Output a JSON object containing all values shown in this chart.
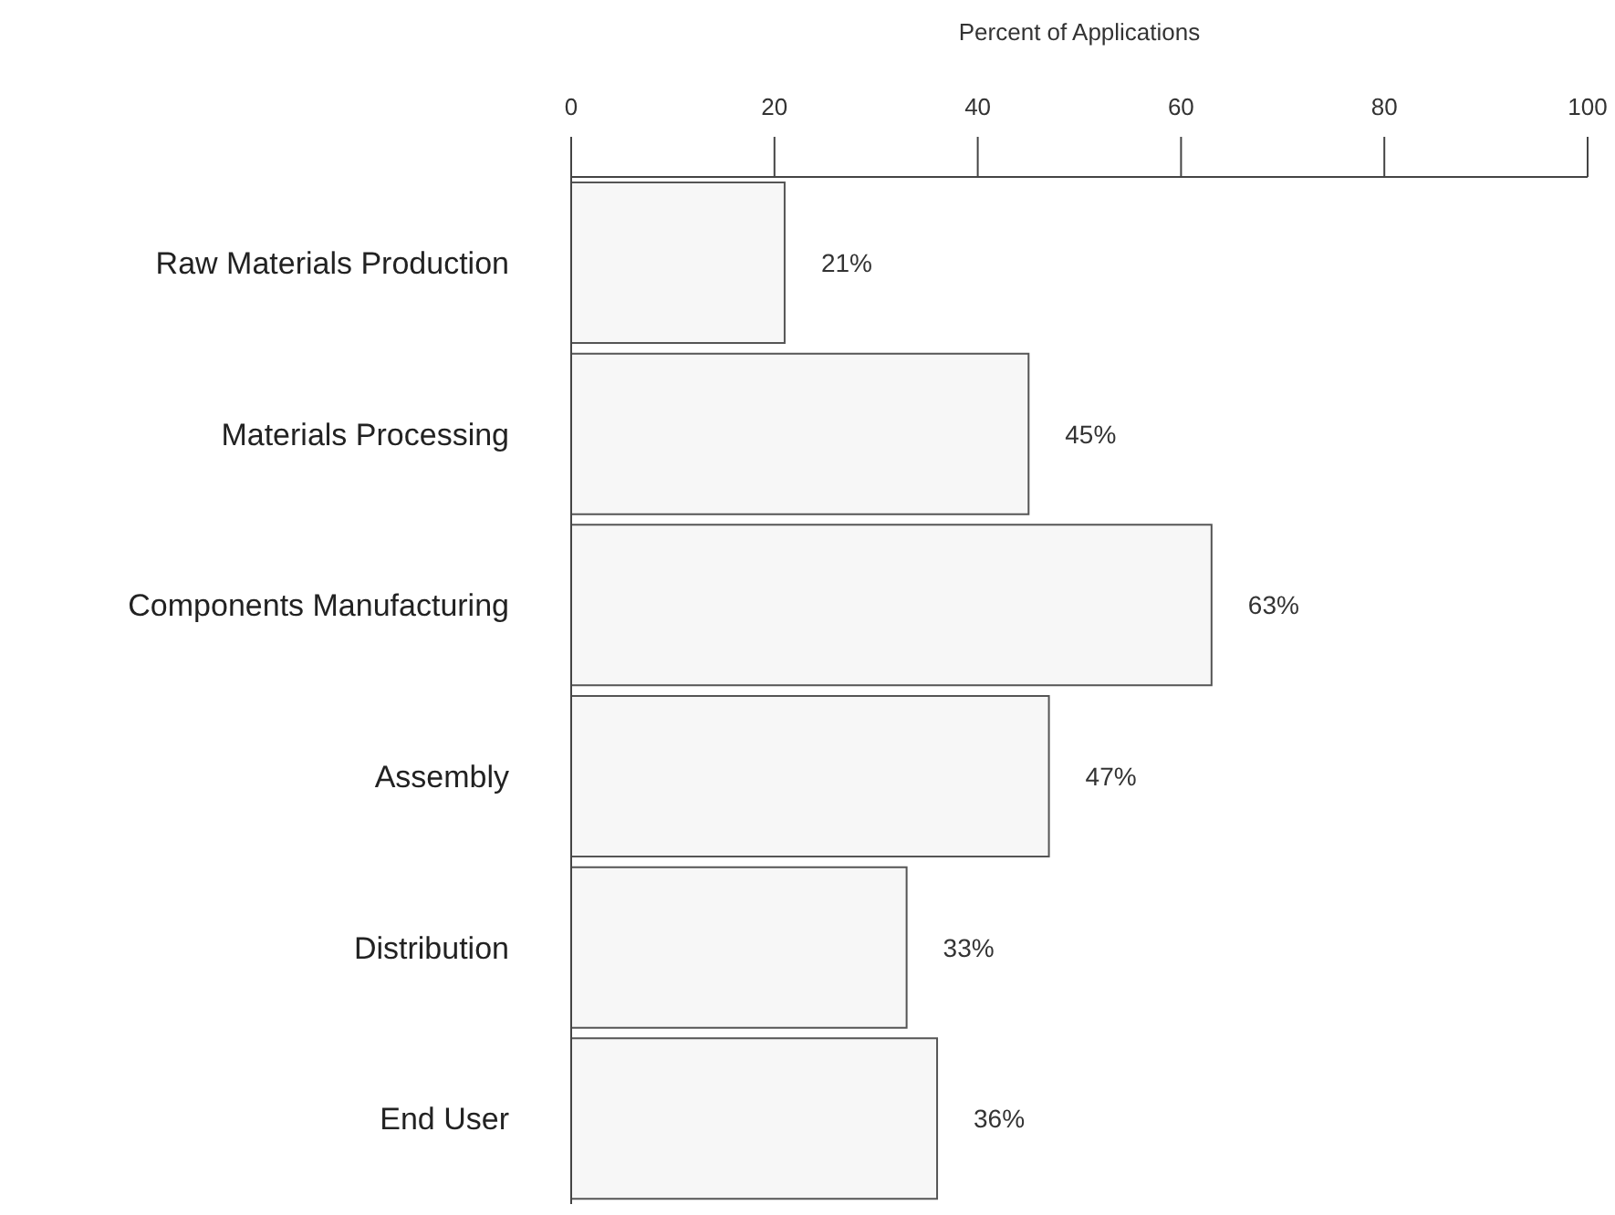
{
  "chart_data": {
    "type": "bar",
    "orientation": "horizontal",
    "xlabel": "Percent of Applications",
    "categories": [
      "Raw Materials Production",
      "Materials Processing",
      "Components Manufacturing",
      "Assembly",
      "Distribution",
      "End User"
    ],
    "values": [
      21,
      45,
      63,
      47,
      33,
      36
    ],
    "value_labels": [
      "21%",
      "45%",
      "63%",
      "47%",
      "33%",
      "36%"
    ],
    "color": "#f7f7f7",
    "xlim": [
      0,
      100
    ],
    "xticks": [
      0,
      20,
      40,
      60,
      80,
      100
    ],
    "grid": false,
    "legend": false
  }
}
